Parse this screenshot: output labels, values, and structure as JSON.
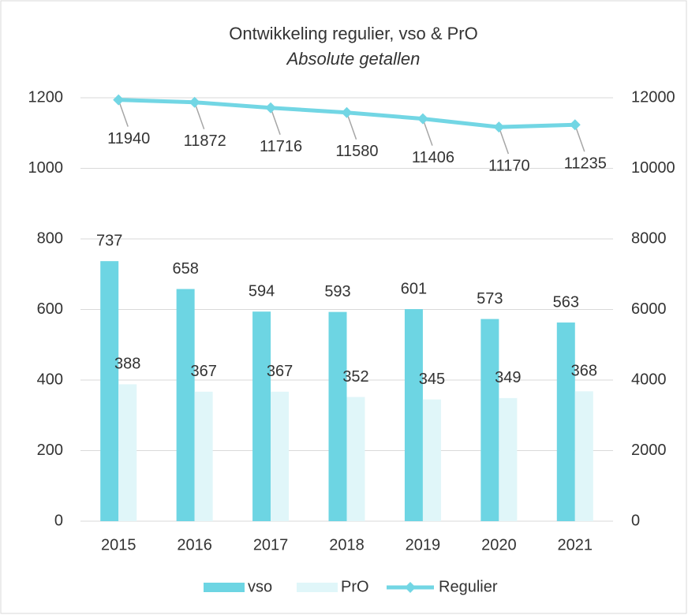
{
  "chart_data": {
    "type": "bar_line",
    "title": "Ontwikkeling regulier, vso & PrO",
    "subtitle": "Absolute getallen",
    "categories": [
      "2015",
      "2016",
      "2017",
      "2018",
      "2019",
      "2020",
      "2021"
    ],
    "series": [
      {
        "name": "vso",
        "color": "#6dd5e3",
        "type": "bar",
        "values": [
          737,
          658,
          594,
          593,
          601,
          573,
          563
        ]
      },
      {
        "name": "PrO",
        "color": "#e0f6f9",
        "type": "bar",
        "values": [
          388,
          367,
          367,
          352,
          345,
          349,
          368
        ]
      },
      {
        "name": "Regulier",
        "color": "#72d6e4",
        "type": "line",
        "axis": "y2",
        "values": [
          11940,
          11872,
          11716,
          11580,
          11406,
          11170,
          11235
        ]
      }
    ],
    "ylim": [
      0,
      1200
    ],
    "yticks": [
      0,
      200,
      400,
      600,
      800,
      1000,
      1200
    ],
    "y2lim": [
      0,
      12000
    ],
    "y2ticks": [
      0,
      2000,
      4000,
      6000,
      8000,
      10000,
      12000
    ],
    "grid": true,
    "legend": "bottom"
  }
}
